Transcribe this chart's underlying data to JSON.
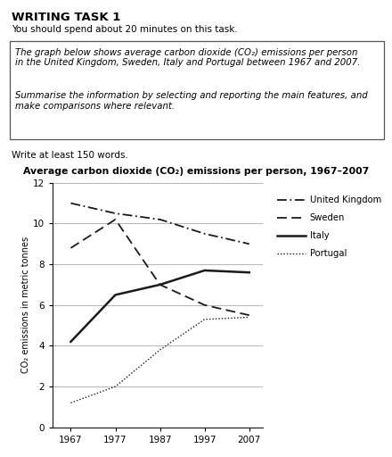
{
  "title": "Average carbon dioxide (CO₂) emissions per person, 1967–2007",
  "header_title": "WRITING TASK 1",
  "header_subtitle": "You should spend about 20 minutes on this task.",
  "box_text_1": "The graph below shows average carbon dioxide (CO₂) emissions per person\nin the United Kingdom, Sweden, Italy and Portugal between 1967 and 2007.",
  "box_text_2": "Summarise the information by selecting and reporting the main features, and\nmake comparisons where relevant.",
  "footer_text": "Write at least 150 words.",
  "years": [
    1967,
    1977,
    1987,
    1997,
    2007
  ],
  "uk": [
    11.0,
    10.5,
    10.2,
    9.5,
    9.0
  ],
  "sweden": [
    8.8,
    10.2,
    7.0,
    6.0,
    5.5
  ],
  "italy": [
    4.2,
    6.5,
    7.0,
    7.7,
    7.6
  ],
  "portugal": [
    1.2,
    2.0,
    3.8,
    5.3,
    5.4
  ],
  "ylabel": "CO₂ emissions in metric tonnes",
  "ylim": [
    0,
    12
  ],
  "yticks": [
    0,
    2,
    4,
    6,
    8,
    10,
    12
  ],
  "xticks": [
    1967,
    1977,
    1987,
    1997,
    2007
  ],
  "bg_color": "#ffffff",
  "line_color": "#1a1a1a",
  "grid_color": "#999999"
}
